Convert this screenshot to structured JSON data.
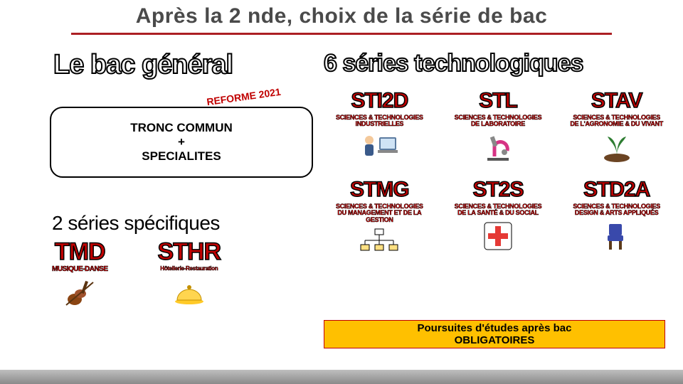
{
  "title": "Après la 2 nde,  choix de la série de bac",
  "rule_color": "#ac1f24",
  "bac_general": "Le bac général",
  "reforme_label": "REFORME 2021",
  "tronc": {
    "l1": "TRONC COMMUN",
    "l2": "+",
    "l3": "SPECIALITES"
  },
  "spec_title": "2 séries spécifiques",
  "specific": [
    {
      "code": "TMD",
      "sub": "MUSIQUE-DANSE",
      "icon": "violin"
    },
    {
      "code": "STHR",
      "sub": "Hôtellerie-Restauration",
      "icon": "cloche"
    }
  ],
  "six_title": "6 séries technologiques",
  "tech_top": [
    {
      "code": "STI2D",
      "desc": "SCIENCES & TECHNOLOGIES\nINDUSTRIELLES",
      "icon": "computer-person"
    },
    {
      "code": "STL",
      "desc": "SCIENCES & TECHNOLOGIES\nDE LABORATOIRE",
      "icon": "microscope"
    },
    {
      "code": "STAV",
      "desc": "SCIENCES & TECHNOLOGIES\nDE L'AGRONOMIE & DU VIVANT",
      "icon": "plant"
    }
  ],
  "tech_bottom": [
    {
      "code": "STMG",
      "desc": "SCIENCES & TECHNOLOGIES\nDU MANAGEMENT ET DE LA GESTION",
      "icon": "org-chart"
    },
    {
      "code": "ST2S",
      "desc": "SCIENCES & TECHNOLOGIES\nDE LA SANTÉ & DU SOCIAL",
      "icon": "medical-cross"
    },
    {
      "code": "STD2A",
      "desc": "SCIENCES & TECHNOLOGIES\nDESIGN & ARTS APPLIQUÉS",
      "icon": "chair"
    }
  ],
  "poursuites": {
    "l1": "Poursuites d'études après bac",
    "l2": "OBLIGATOIRES"
  },
  "colors": {
    "title_red": "#c00000",
    "accent": "#ac1f24",
    "banner_bg": "#ffc000",
    "banner_border": "#c00000"
  }
}
